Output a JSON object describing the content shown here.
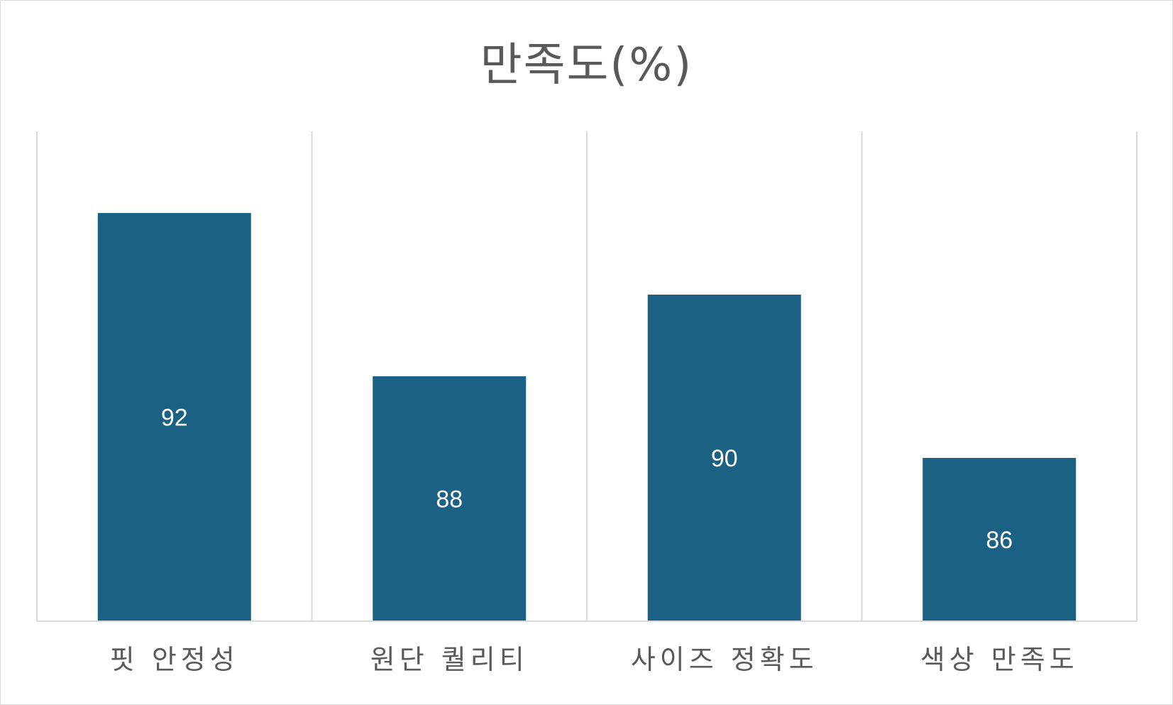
{
  "chart_data": {
    "type": "bar",
    "title": "만족도(%)",
    "categories": [
      "핏 안정성",
      "원단 퀄리티",
      "사이즈 정확도",
      "색상 만족도"
    ],
    "values": [
      92,
      88,
      90,
      86
    ],
    "xlabel": "",
    "ylabel": "",
    "ylim": [
      82,
      94
    ],
    "grid": "vertical-category-separators",
    "legend": "none",
    "colors": {
      "bar": "#1b6184",
      "data_label": "#ffffff",
      "axis_text": "#595959",
      "grid": "#d9d9d9"
    }
  }
}
